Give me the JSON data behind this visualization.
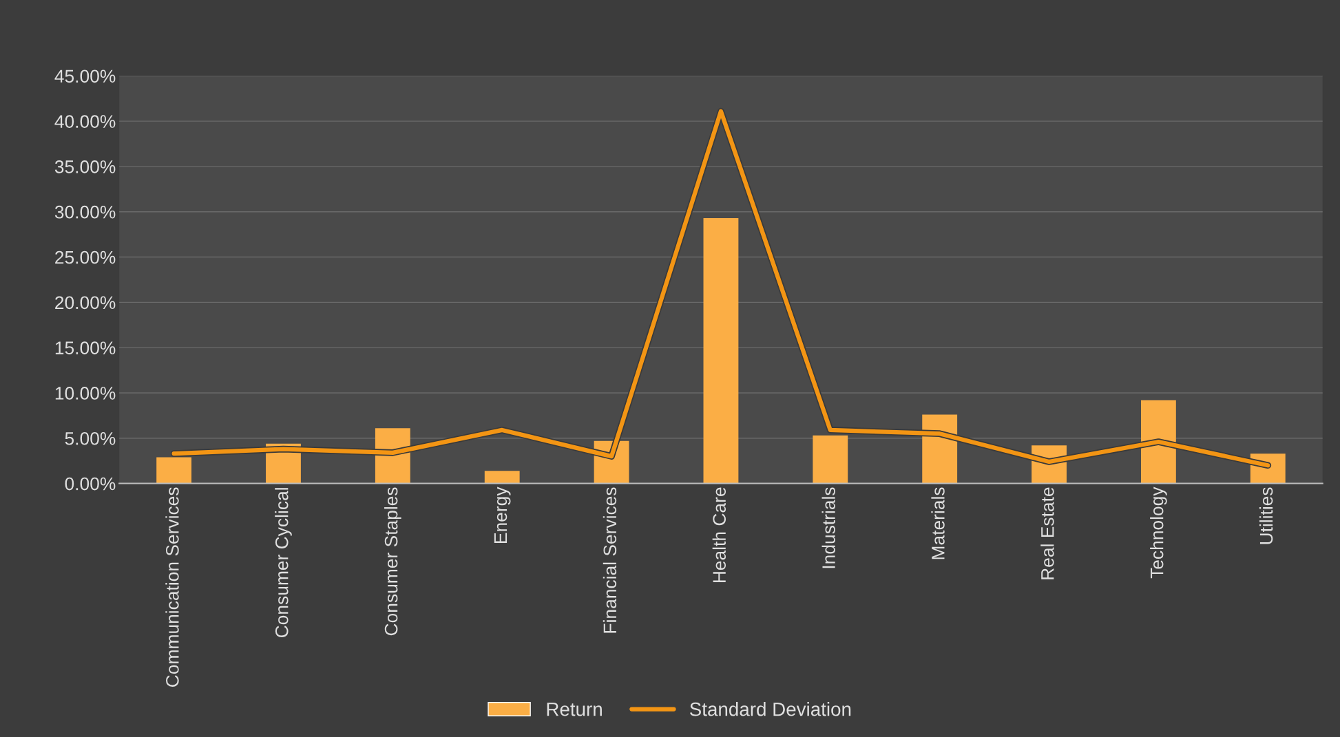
{
  "chart_data": {
    "type": "bar",
    "categories": [
      "Communication Services",
      "Consumer Cyclical",
      "Consumer Staples",
      "Energy",
      "Financial Services",
      "Health Care",
      "Industrials",
      "Materials",
      "Real Estate",
      "Technology",
      "Utilities"
    ],
    "series": [
      {
        "name": "Return",
        "color": "#fbae45",
        "values": [
          2.9,
          4.4,
          6.1,
          1.4,
          4.7,
          29.3,
          5.3,
          7.6,
          4.2,
          9.2,
          3.3
        ]
      },
      {
        "name": "Standard Deviation",
        "type": "line",
        "color": "#f39514",
        "values": [
          3.3,
          3.8,
          3.4,
          5.9,
          3.0,
          41.1,
          5.9,
          5.5,
          2.4,
          4.6,
          2.0
        ]
      }
    ],
    "ylim": [
      0,
      45
    ],
    "yticks": [
      {
        "value": 0,
        "label": "0.00%"
      },
      {
        "value": 5,
        "label": "5.00%"
      },
      {
        "value": 10,
        "label": "10.00%"
      },
      {
        "value": 15,
        "label": "15.00%"
      },
      {
        "value": 20,
        "label": "20.00%"
      },
      {
        "value": 25,
        "label": "25.00%"
      },
      {
        "value": 30,
        "label": "30.00%"
      },
      {
        "value": 35,
        "label": "35.00%"
      },
      {
        "value": 40,
        "label": "40.00%"
      },
      {
        "value": 45,
        "label": "45.00%"
      }
    ],
    "grid": "y",
    "legend": "bottom",
    "marker": "none",
    "line_style": "solid"
  }
}
